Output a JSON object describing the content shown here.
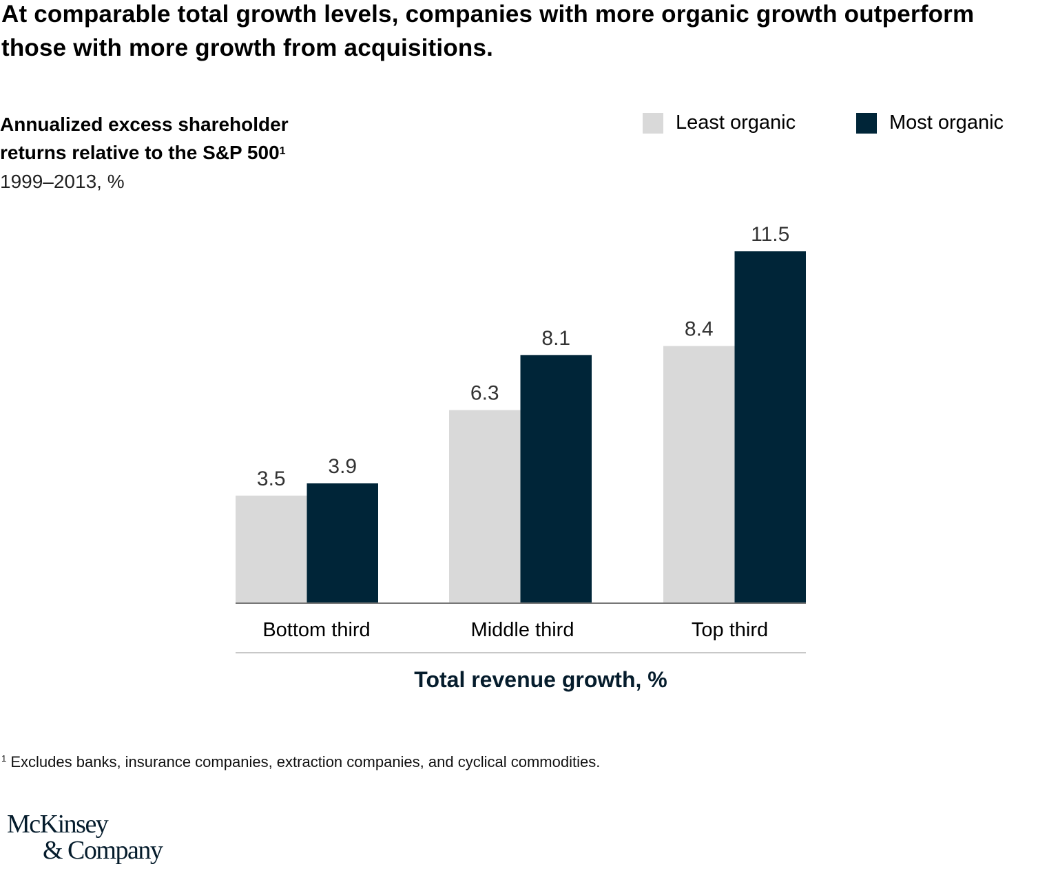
{
  "title": "At comparable total growth levels, companies with more organic growth outperform those with more growth from acquisitions.",
  "y_title": "Annualized excess shareholder returns relative to the S&P 500",
  "y_title_footnote_marker": "1",
  "y_subtitle": "1999–2013, %",
  "footnote": {
    "marker": "1",
    "text": "Excludes banks, insurance companies, extraction companies, and cyclical commodities."
  },
  "logo": {
    "line1": "McKinsey",
    "line2": "& Company"
  },
  "colors": {
    "least_organic": "#d9d9d9",
    "most_organic": "#002538",
    "axis_title": "#051c2c"
  },
  "chart_data": {
    "type": "bar",
    "title": "At comparable total growth levels, companies with more organic growth outperform those with more growth from acquisitions.",
    "xlabel": "Total revenue growth, %",
    "ylabel": "Annualized excess shareholder returns relative to the S&P 500, 1999–2013, %",
    "categories": [
      "Bottom third",
      "Middle third",
      "Top third"
    ],
    "series": [
      {
        "name": "Least organic",
        "color": "#d9d9d9",
        "values": [
          3.5,
          6.3,
          8.4
        ],
        "labels": [
          "3.5",
          "6.3",
          "8.4"
        ]
      },
      {
        "name": "Most organic",
        "color": "#002538",
        "values": [
          3.9,
          8.1,
          11.5
        ],
        "labels": [
          "3.9",
          "8.1",
          "11.5"
        ]
      }
    ],
    "ylim": [
      0,
      11.5
    ],
    "grid": false,
    "legend": "top-right"
  }
}
